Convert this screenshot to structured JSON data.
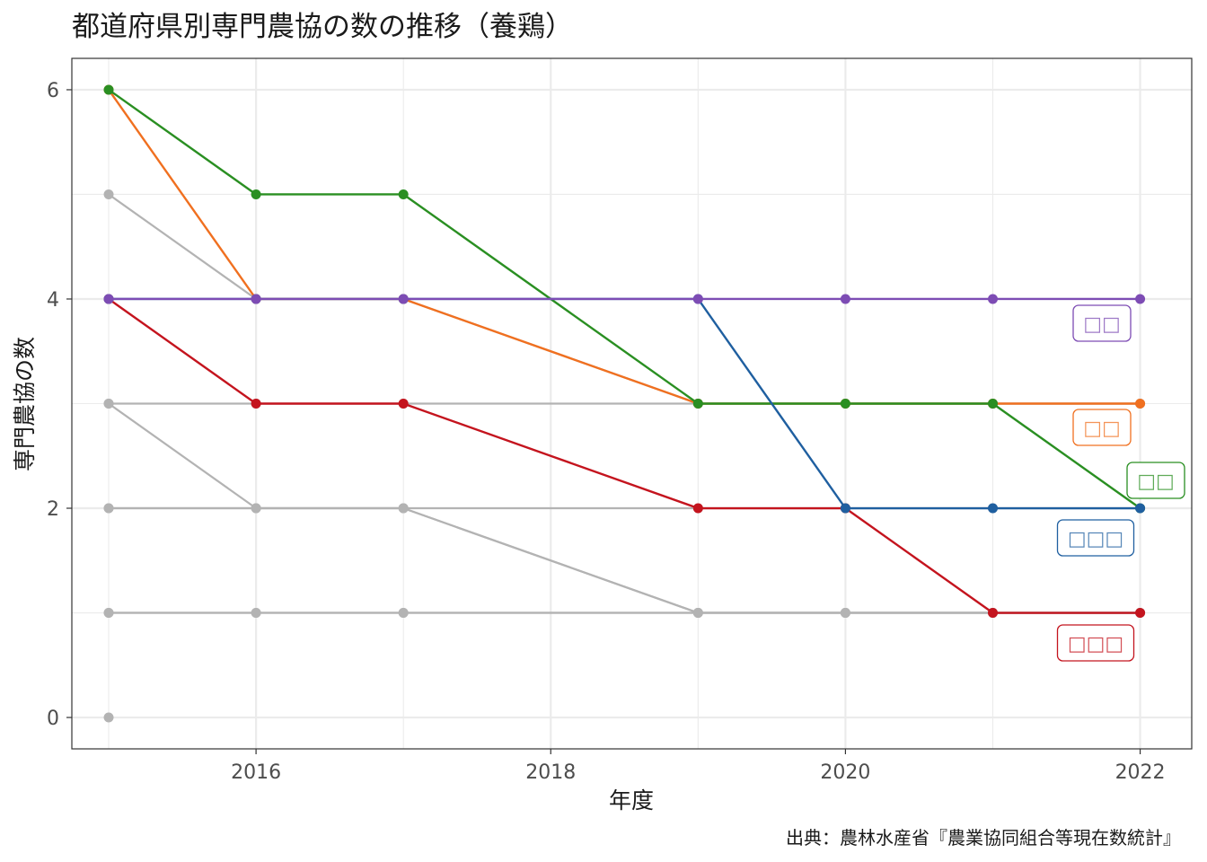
{
  "chart_data": {
    "type": "line",
    "title": "都道府県別専門農協の数の推移（養鶏）",
    "xlabel": "年度",
    "ylabel": "専門農協の数",
    "caption": "出典：農林水産省『農業協同組合等現在数統計』",
    "x": [
      2015,
      2016,
      2017,
      2019,
      2020,
      2021,
      2022
    ],
    "x_ticks": [
      2016,
      2018,
      2020,
      2022
    ],
    "y_ticks": [
      0,
      2,
      4,
      6
    ],
    "xlim": [
      2014.75,
      2022.35
    ],
    "ylim": [
      -0.3,
      6.3
    ],
    "grid": true,
    "background_series": [
      {
        "values": [
          5,
          4,
          4,
          3,
          3,
          3,
          3
        ]
      },
      {
        "values": [
          3,
          3,
          3,
          3,
          3,
          3,
          3
        ]
      },
      {
        "values": [
          3,
          2,
          2,
          1,
          1,
          1,
          1
        ]
      },
      {
        "values": [
          2,
          2,
          2,
          2,
          2,
          2,
          2
        ]
      },
      {
        "values": [
          2,
          2,
          2,
          1,
          1,
          1,
          1
        ]
      },
      {
        "values": [
          1,
          1,
          1,
          1,
          1,
          1,
          1
        ]
      },
      {
        "values": [
          1,
          1,
          1,
          1,
          1,
          1,
          1
        ]
      },
      {
        "values": [
          0,
          null,
          null,
          null,
          null,
          null,
          null
        ]
      }
    ],
    "highlight_series": [
      {
        "label": "□□",
        "color": "#f07020",
        "values": [
          6,
          4,
          4,
          3,
          3,
          3,
          3
        ]
      },
      {
        "label": "□□",
        "color": "#2a8f22",
        "values": [
          6,
          5,
          5,
          3,
          3,
          3,
          2
        ]
      },
      {
        "label": "□□□",
        "color": "#c4141e",
        "values": [
          4,
          3,
          3,
          2,
          2,
          1,
          1
        ]
      },
      {
        "label": "□□□",
        "color": "#1f5fa0",
        "values": [
          4,
          4,
          4,
          4,
          2,
          2,
          2
        ]
      },
      {
        "label": "□□",
        "color": "#7d4cb4",
        "values": [
          4,
          4,
          4,
          4,
          4,
          4,
          4
        ]
      }
    ]
  }
}
